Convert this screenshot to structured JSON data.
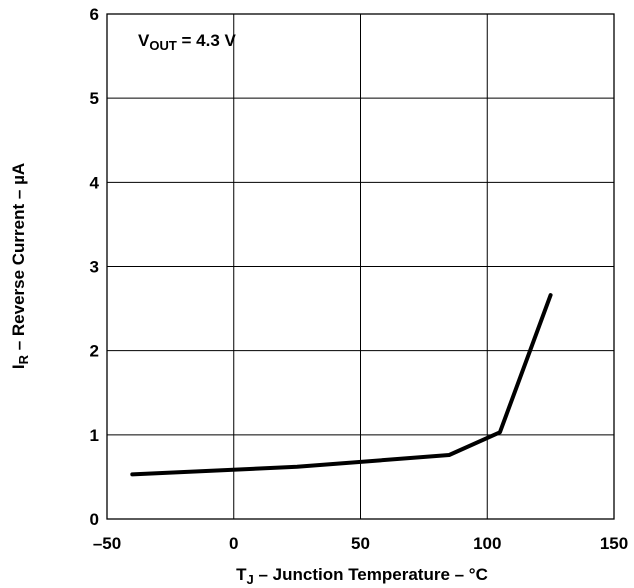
{
  "chart_data": {
    "type": "line",
    "xlabel": {
      "main": "T",
      "sub": "J",
      "rest": " – Junction Temperature – °C"
    },
    "ylabel": {
      "main": "I",
      "sub": "R",
      "rest": " – Reverse Current – µA"
    },
    "annotation": {
      "main": "V",
      "sub": "OUT",
      "rest": " = 4.3 V"
    },
    "xlim": [
      -50,
      150
    ],
    "ylim": [
      0,
      6
    ],
    "x_ticks": [
      -50,
      0,
      50,
      100,
      150
    ],
    "y_ticks": [
      0,
      1,
      2,
      3,
      4,
      5,
      6
    ],
    "x_tick_labels": [
      "–50",
      "0",
      "50",
      "100",
      "150"
    ],
    "y_tick_labels": [
      "0",
      "1",
      "2",
      "3",
      "4",
      "5",
      "6"
    ],
    "grid": true,
    "series": [
      {
        "x": [
          -40,
          25,
          85,
          105,
          125
        ],
        "y": [
          0.53,
          0.62,
          0.76,
          1.03,
          2.66
        ]
      }
    ]
  }
}
